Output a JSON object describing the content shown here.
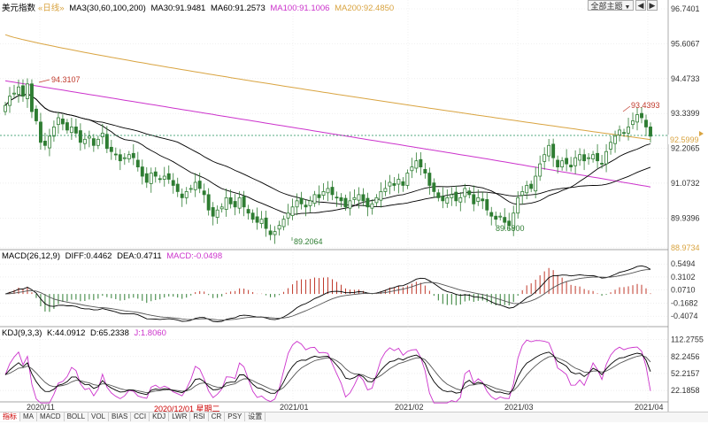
{
  "legend_main": {
    "name": "美元指数",
    "period": "«日线»",
    "ma_label": "MA3(30,60,100,200)",
    "ma30": "MA30:91.9481",
    "ma60": "MA60:91.2573",
    "ma100": "MA100:91.1006",
    "ma200": "MA200:92.4850"
  },
  "legend_macd": {
    "name": "MACD(26,12,9)",
    "diff": "DIFF:0.4462",
    "dea": "DEA:0.4711",
    "macd": "MACD:-0.0498"
  },
  "legend_kdj": {
    "name": "KDJ(9,3,3)",
    "k": "K:44.0912",
    "d": "D:65.2338",
    "j": "J:1.8060"
  },
  "toolbar": {
    "theme_label": "全部主题",
    "arrow_left": "◀",
    "arrow_right": "▶"
  },
  "price_axis": [
    "96.7401",
    "95.6067",
    "94.4733",
    "93.3399",
    "92.2065",
    "91.0732",
    "89.9396",
    "88.9734"
  ],
  "current_price": "92.5999",
  "macd_axis": [
    "0.5494",
    "0.3102",
    "0.0710",
    "-0.1682",
    "-0.4074"
  ],
  "kdj_axis": [
    "112.2755",
    "82.2456",
    "52.2157",
    "22.1858"
  ],
  "annotations": {
    "high_left": "94.3107",
    "low_left": "89.2064",
    "low_right": "89.6800",
    "high_right": "93.4393"
  },
  "date_labels": [
    "2020/11",
    "2021/01",
    "2021/02",
    "2021/03",
    "2021/04"
  ],
  "date_tooltip": "2020/12/01 星期二",
  "tabs": [
    "指标",
    "MA",
    "MACD",
    "BOLL",
    "VOL",
    "BIAS",
    "CCI",
    "KDJ",
    "LWR",
    "RSI",
    "CR",
    "PSY",
    "设置"
  ],
  "colors": {
    "up": "#2e7d32",
    "down": "#2e7d32",
    "ma30": "#000000",
    "ma60": "#000000",
    "ma100": "#cc33cc",
    "ma200": "#d9a441",
    "dashed": "#1e8c5a",
    "price_tag": "#d9a441"
  },
  "chart_data": {
    "type": "candlestick",
    "title": "美元指数",
    "ylim": [
      88.97,
      96.74
    ],
    "closes": [
      93.6,
      93.9,
      94.0,
      94.2,
      93.9,
      94.3,
      93.4,
      93.1,
      92.4,
      92.3,
      92.6,
      92.9,
      93.2,
      93.0,
      92.8,
      92.9,
      92.7,
      92.4,
      92.5,
      92.6,
      92.3,
      92.5,
      92.7,
      92.2,
      92.1,
      92.0,
      91.8,
      91.9,
      92.0,
      91.9,
      91.6,
      91.3,
      91.1,
      91.4,
      91.3,
      91.2,
      91.3,
      91.2,
      91.0,
      90.8,
      90.6,
      90.8,
      90.9,
      91.1,
      90.9,
      90.7,
      90.2,
      90.0,
      90.2,
      90.3,
      90.6,
      90.4,
      90.3,
      90.6,
      90.3,
      90.1,
      89.9,
      89.8,
      89.9,
      89.6,
      89.4,
      89.5,
      89.7,
      89.9,
      90.1,
      90.3,
      90.5,
      90.4,
      90.3,
      90.5,
      90.7,
      90.6,
      90.8,
      90.9,
      90.7,
      90.6,
      90.5,
      90.3,
      90.5,
      90.6,
      90.7,
      90.5,
      90.3,
      90.4,
      90.6,
      90.8,
      90.9,
      91.1,
      91.0,
      91.2,
      91.0,
      91.4,
      91.6,
      91.8,
      91.6,
      91.4,
      91.0,
      90.8,
      90.6,
      90.5,
      90.6,
      90.7,
      90.5,
      90.6,
      90.9,
      90.7,
      90.4,
      90.6,
      90.5,
      90.2,
      90.0,
      89.9,
      90.0,
      89.8,
      89.7,
      90.1,
      90.6,
      90.8,
      91.0,
      90.9,
      91.3,
      91.7,
      92.0,
      92.3,
      91.9,
      91.6,
      91.8,
      91.7,
      91.6,
      91.9,
      92.0,
      91.8,
      91.9,
      92.0,
      91.8,
      91.7,
      92.1,
      92.4,
      92.6,
      92.8,
      92.7,
      92.9,
      93.1,
      93.3,
      93.2,
      92.9,
      92.6
    ]
  }
}
